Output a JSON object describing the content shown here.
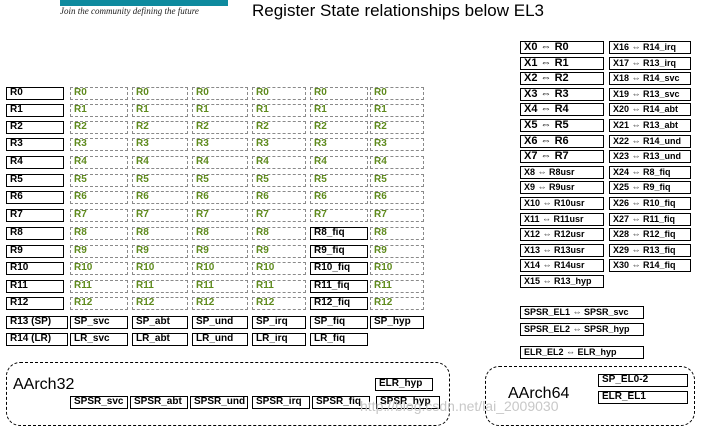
{
  "header": {
    "tagline": "Join the community defining the future",
    "title": "Register State relationships below EL3"
  },
  "aarch32": {
    "label": "AArch32",
    "columns": [
      [
        "R0",
        "R1",
        "R2",
        "R3",
        "R4",
        "R5",
        "R6",
        "R7",
        "R8",
        "R9",
        "R10",
        "R11",
        "R12",
        "R13 (SP)",
        "R14 (LR)"
      ],
      [
        "R0",
        "R1",
        "R2",
        "R3",
        "R4",
        "R5",
        "R6",
        "R7",
        "R8",
        "R9",
        "R10",
        "R11",
        "R12",
        "SP_svc",
        "LR_svc"
      ],
      [
        "R0",
        "R1",
        "R2",
        "R3",
        "R4",
        "R5",
        "R6",
        "R7",
        "R8",
        "R9",
        "R10",
        "R11",
        "R12",
        "SP_abt",
        "LR_abt"
      ],
      [
        "R0",
        "R1",
        "R2",
        "R3",
        "R4",
        "R5",
        "R6",
        "R7",
        "R8",
        "R9",
        "R10",
        "R11",
        "R12",
        "SP_und",
        "LR_und"
      ],
      [
        "R0",
        "R1",
        "R2",
        "R3",
        "R4",
        "R5",
        "R6",
        "R7",
        "R8",
        "R9",
        "R10",
        "R11",
        "R12",
        "SP_irq",
        "LR_irq"
      ],
      [
        "R0",
        "R1",
        "R2",
        "R3",
        "R4",
        "R5",
        "R6",
        "R7",
        "R8_fiq",
        "R9_fiq",
        "R10_fiq",
        "R11_fiq",
        "R12_fiq",
        "SP_fiq",
        "LR_fiq"
      ],
      [
        "R0",
        "R1",
        "R2",
        "R3",
        "R4",
        "R5",
        "R6",
        "R7",
        "R8",
        "R9",
        "R10",
        "R11",
        "R12",
        "SP_hyp"
      ]
    ],
    "elr_hyp": "ELR_hyp",
    "spsr": [
      "SPSR_svc",
      "SPSR_abt",
      "SPSR_und",
      "SPSR_irq",
      "SPSR_fiq",
      "SPSR_hyp"
    ]
  },
  "aarch64": {
    "label": "AArch64",
    "left_column": [
      "X0 ⇔ R0",
      "X1 ⇔ R1",
      "X2 ⇔ R2",
      "X3 ⇔ R3",
      "X4 ⇔ R4",
      "X5 ⇔ R5",
      "X6 ⇔ R6",
      "X7 ⇔ R7",
      "X8 ⇔ R8usr",
      "X9 ⇔ R9usr",
      "X10 ⇔ R10usr",
      "X11 ⇔ R11usr",
      "X12 ⇔ R12usr",
      "X13 ⇔ R13usr",
      "X14 ⇔ R14usr",
      "X15 ⇔ R13_hyp"
    ],
    "right_column": [
      "X16 ⇔ R14_irq",
      "X17 ⇔ R13_irq",
      "X18 ⇔ R14_svc",
      "X19 ⇔ R13_svc",
      "X20 ⇔ R14_abt",
      "X21 ⇔ R13_abt",
      "X22 ⇔ R14_und",
      "X23 ⇔ R13_und",
      "X24 ⇔ R8_fiq",
      "X25 ⇔ R9_fiq",
      "X26 ⇔ R10_fiq",
      "X27 ⇔ R11_fiq",
      "X28 ⇔ R12_fiq",
      "X29 ⇔ R13_fiq",
      "X30 ⇔ R14_fiq"
    ],
    "spsr_el1": "SPSR_EL1 ⇔ SPSR_svc",
    "spsr_el2": "SPSR_EL2 ⇔ SPSR_hyp",
    "elr_el2": "ELR_EL2 ⇔ ELR_hyp",
    "sp_el0_2": "SP_EL0-2",
    "elr_el1": "ELR_EL1"
  },
  "watermark": "http://blog.csdn.net/lai_2009030"
}
